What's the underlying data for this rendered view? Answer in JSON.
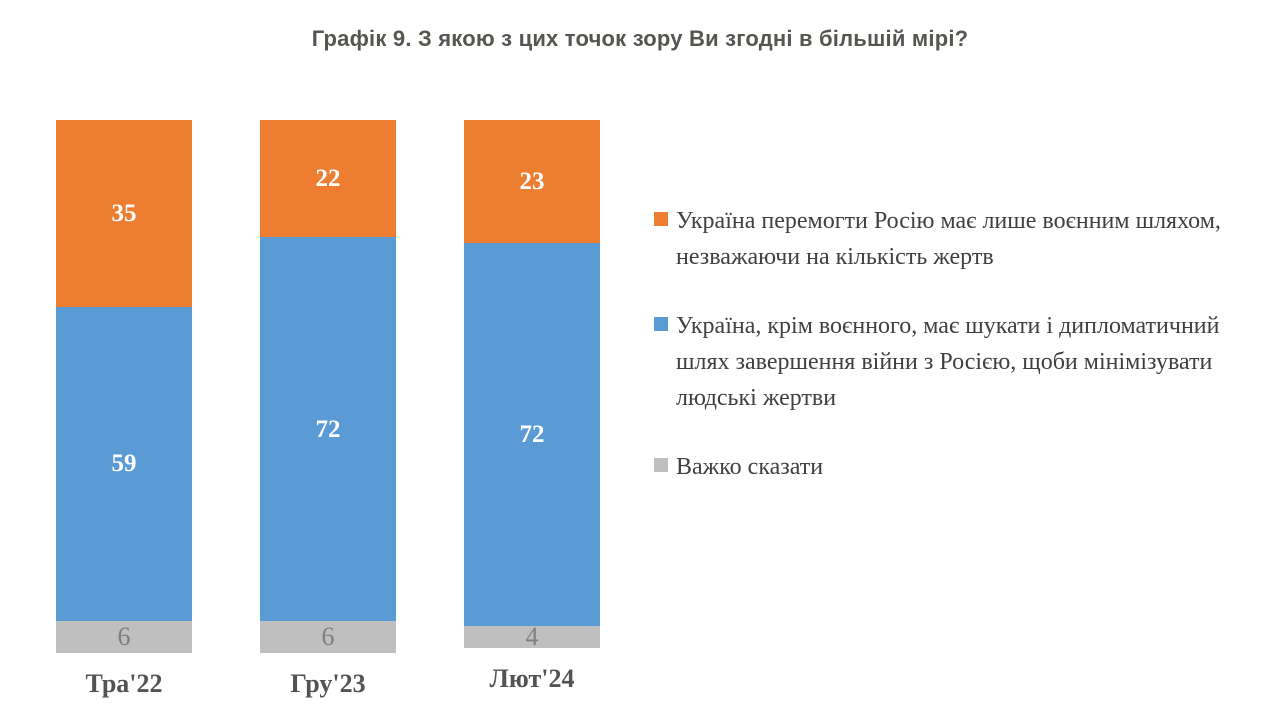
{
  "title": "Графік 9. З якою з цих точок зору Ви згодні в більшій мірі?",
  "colors": {
    "orange": "#ED7D31",
    "blue": "#5B9BD5",
    "gray": "#BFBFBF",
    "title_text": "#565650",
    "axis_label_text": "#535353",
    "legend_text": "#404040",
    "white_value_label": "#FFFFFF",
    "gray_value_label": "#7F7F7F"
  },
  "chart_data": {
    "type": "bar",
    "stacked": true,
    "orientation": "vertical",
    "title": "Графік 9. З якою з цих точок зору Ви згодні в більшій мірі?",
    "categories": [
      "Тра'22",
      "Гру'23",
      "Лют'24"
    ],
    "series": [
      {
        "name": "Україна перемогти Росію має лише воєнним шляхом, незважаючи на кількість жертв",
        "color": "#ED7D31",
        "label_color": "#FFFFFF",
        "values": [
          35,
          22,
          23
        ]
      },
      {
        "name": "Україна, крім воєнного, має шукати і дипломатичний шлях завершення війни з Росією, щоби мінімізувати людські жертви",
        "color": "#5B9BD5",
        "label_color": "#FFFFFF",
        "values": [
          59,
          72,
          72
        ]
      },
      {
        "name": "Важко сказати",
        "color": "#BFBFBF",
        "label_color": "#7F7F7F",
        "values": [
          6,
          6,
          4
        ]
      }
    ],
    "xlabel": "",
    "ylabel": "",
    "ylim": [
      0,
      100
    ],
    "grid": false,
    "axes_visible": false,
    "legend_position": "right",
    "value_labels": true
  }
}
